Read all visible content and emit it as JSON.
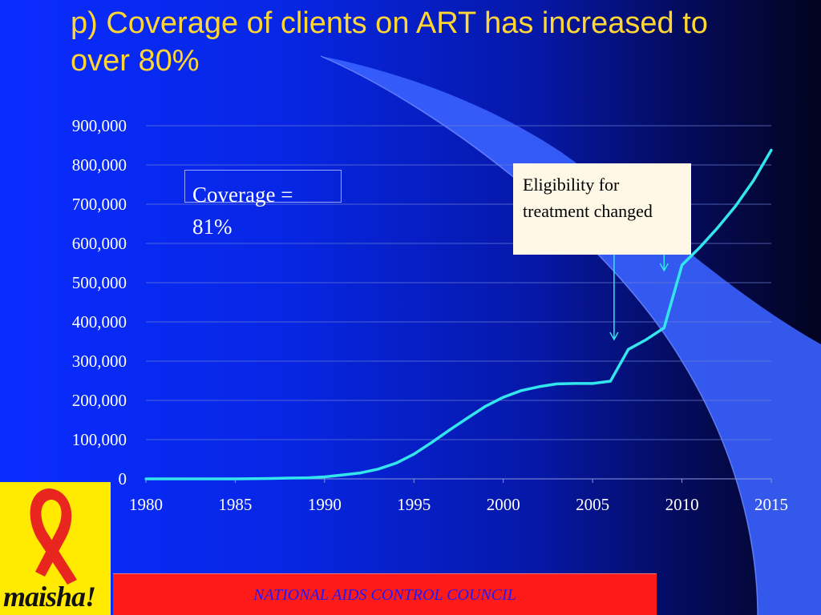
{
  "slide": {
    "title": "p)  Coverage of clients on ART has increased to over 80%",
    "coverage_label": "Coverage = 81%",
    "callout": "Eligibility for treatment changed",
    "footer": "NATIONAL AIDS CONTROL COUNCIL",
    "logo_text": "maisha!"
  },
  "colors": {
    "title": "#ffd633",
    "line": "#33e6ee",
    "arrow": "#33e6ee",
    "footer_bg": "#ff1a1a",
    "footer_text": "#1a1aff",
    "logo_bg": "#ffea00",
    "ribbon": "#e8251f"
  },
  "chart_data": {
    "type": "line",
    "x": [
      1980,
      1981,
      1982,
      1983,
      1984,
      1985,
      1986,
      1987,
      1988,
      1989,
      1990,
      1991,
      1992,
      1993,
      1994,
      1995,
      1996,
      1997,
      1998,
      1999,
      2000,
      2001,
      2002,
      2003,
      2004,
      2005,
      2006,
      2007,
      2008,
      2009,
      2010,
      2011,
      2012,
      2013,
      2014,
      2015
    ],
    "series": [
      {
        "values": [
          0,
          0,
          0,
          0,
          0,
          0,
          500,
          1000,
          2000,
          2500,
          5000,
          10000,
          15000,
          25000,
          40000,
          63000,
          93000,
          125000,
          155000,
          185000,
          208000,
          225000,
          235000,
          242000,
          243000,
          243000,
          249000,
          330000,
          355000,
          385000,
          545000,
          590000,
          640000,
          695000,
          760000,
          838000
        ]
      }
    ],
    "xlim": [
      1980,
      2015
    ],
    "ylim": [
      0,
      900000
    ],
    "xticks": [
      "1980",
      "1985",
      "1990",
      "1995",
      "2000",
      "2005",
      "2010",
      "2015"
    ],
    "yticks": [
      "0",
      "100,000",
      "200,000",
      "300,000",
      "400,000",
      "500,000",
      "600,000",
      "700,000",
      "800,000",
      "900,000"
    ],
    "grid": true,
    "annotations": [
      {
        "text": "Coverage = 81%"
      },
      {
        "text": "Eligibility for treatment changed",
        "arrows_to_x": [
          2006.2,
          2009.0
        ]
      }
    ]
  }
}
